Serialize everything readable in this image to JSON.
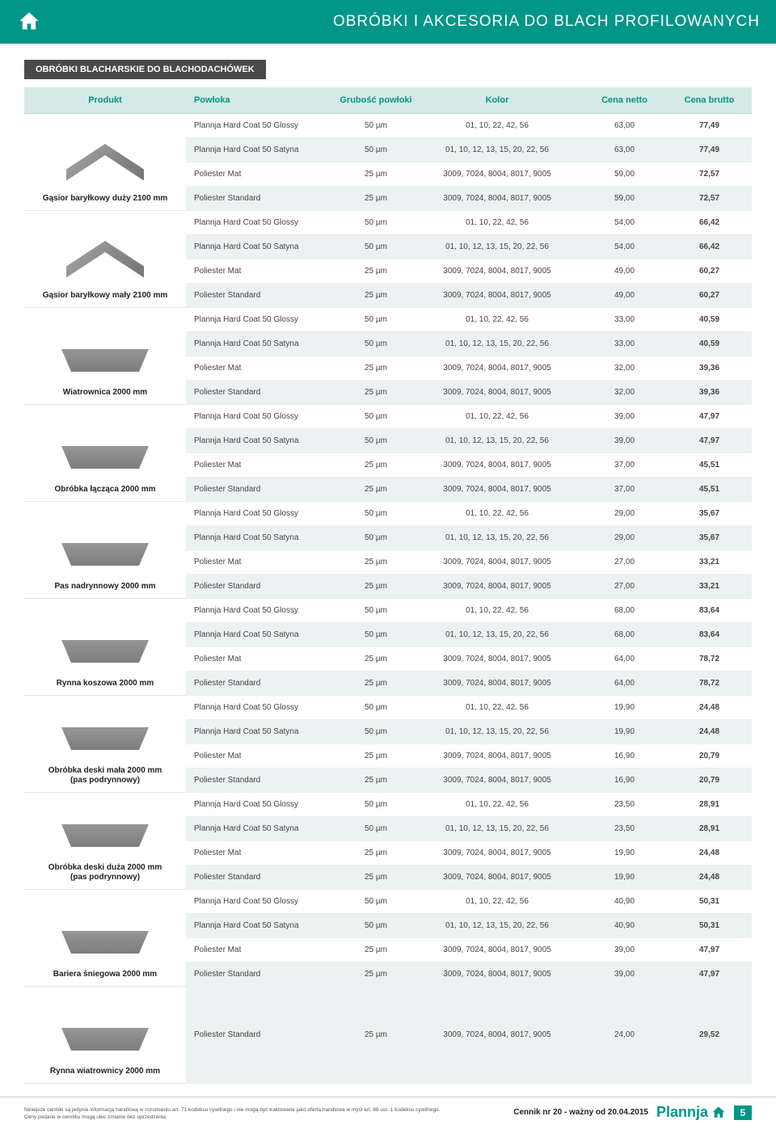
{
  "colors": {
    "brand": "#009688",
    "headerRowBg": "#d5eae7",
    "altRowBg": "#eaf3f2",
    "sectionBar": "#4a4a4a",
    "text": "#333333",
    "border": "#e5e5e5"
  },
  "header": {
    "title": "OBRÓBKI I AKCESORIA DO BLACH PROFILOWANYCH"
  },
  "sectionTitle": "OBRÓBKI BLACHARSKIE DO BLACHODACHÓWEK",
  "columns": {
    "produkt": "Produkt",
    "powloka": "Powłoka",
    "grubosc": "Grubość powłoki",
    "kolor": "Kolor",
    "netto": "Cena netto",
    "brutto": "Cena brutto"
  },
  "coatingVariants": [
    {
      "name": "Plannja Hard Coat 50 Glossy",
      "thickness": "50 µm",
      "colors": "01, 10, 22, 42, 56"
    },
    {
      "name": "Plannja Hard Coat 50 Satyna",
      "thickness": "50 µm",
      "colors": "01, 10, 12, 13, 15, 20, 22, 56"
    },
    {
      "name": "Poliester Mat",
      "thickness": "25 µm",
      "colors": "3009, 7024, 8004, 8017, 9005"
    },
    {
      "name": "Poliester Standard",
      "thickness": "25 µm",
      "colors": "3009, 7024, 8004, 8017, 9005"
    }
  ],
  "products": [
    {
      "label": "Gąsior baryłkowy duży 2100 mm",
      "thumb": "ridge",
      "prices": [
        [
          "63,00",
          "77,49"
        ],
        [
          "63,00",
          "77,49"
        ],
        [
          "59,00",
          "72,57"
        ],
        [
          "59,00",
          "72,57"
        ]
      ]
    },
    {
      "label": "Gąsior baryłkowy mały 2100 mm",
      "thumb": "ridge",
      "prices": [
        [
          "54,00",
          "66,42"
        ],
        [
          "54,00",
          "66,42"
        ],
        [
          "49,00",
          "60,27"
        ],
        [
          "49,00",
          "60,27"
        ]
      ]
    },
    {
      "label": "Wiatrownica 2000 mm",
      "thumb": "flat",
      "prices": [
        [
          "33,00",
          "40,59"
        ],
        [
          "33,00",
          "40,59"
        ],
        [
          "32,00",
          "39,36"
        ],
        [
          "32,00",
          "39,36"
        ]
      ]
    },
    {
      "label": "Obróbka łącząca 2000 mm",
      "thumb": "flat",
      "prices": [
        [
          "39,00",
          "47,97"
        ],
        [
          "39,00",
          "47,97"
        ],
        [
          "37,00",
          "45,51"
        ],
        [
          "37,00",
          "45,51"
        ]
      ]
    },
    {
      "label": "Pas nadrynnowy 2000 mm",
      "thumb": "flat",
      "prices": [
        [
          "29,00",
          "35,67"
        ],
        [
          "29,00",
          "35,67"
        ],
        [
          "27,00",
          "33,21"
        ],
        [
          "27,00",
          "33,21"
        ]
      ]
    },
    {
      "label": "Rynna koszowa 2000 mm",
      "thumb": "flat",
      "prices": [
        [
          "68,00",
          "83,64"
        ],
        [
          "68,00",
          "83,64"
        ],
        [
          "64,00",
          "78,72"
        ],
        [
          "64,00",
          "78,72"
        ]
      ]
    },
    {
      "label": "Obróbka deski mała 2000 mm\n(pas podrynnowy)",
      "thumb": "flat",
      "prices": [
        [
          "19,90",
          "24,48"
        ],
        [
          "19,90",
          "24,48"
        ],
        [
          "16,90",
          "20,79"
        ],
        [
          "16,90",
          "20,79"
        ]
      ]
    },
    {
      "label": "Obróbka deski duża 2000 mm\n(pas podrynnowy)",
      "thumb": "flat",
      "prices": [
        [
          "23,50",
          "28,91"
        ],
        [
          "23,50",
          "28,91"
        ],
        [
          "19,90",
          "24,48"
        ],
        [
          "19,90",
          "24,48"
        ]
      ]
    },
    {
      "label": "Bariera śniegowa 2000 mm",
      "thumb": "flat",
      "prices": [
        [
          "40,90",
          "50,31"
        ],
        [
          "40,90",
          "50,31"
        ],
        [
          "39,00",
          "47,97"
        ],
        [
          "39,00",
          "47,97"
        ]
      ]
    },
    {
      "label": "Rynna wiatrownicy 2000 mm",
      "thumb": "flat",
      "singleVariantIndex": 3,
      "prices": [
        [
          "24,00",
          "29,52"
        ]
      ]
    }
  ],
  "footer": {
    "disclaimer1": "Niniejsze cenniki są jedynie informacją handlową w rozumieniu art. 71 kodeksu cywilnego i nie mogą być traktowane jako oferta handlowa w myśl art. 66 ust. 1 kodeksu cywilnego.",
    "disclaimer2": "Ceny podane w cenniku mogą ulec zmianie bez uprzedzenia.",
    "validity": "Cennik nr 20 - ważny od 20.04.2015",
    "brand": "Plannja",
    "page": "5"
  }
}
